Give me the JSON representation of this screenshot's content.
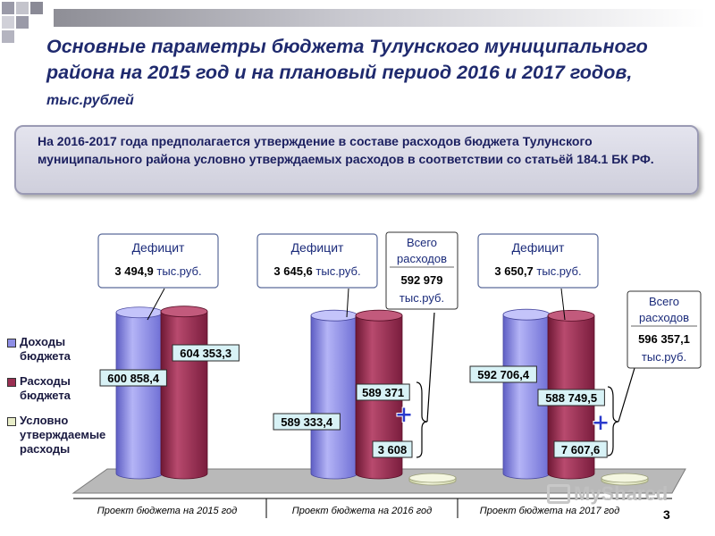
{
  "title": {
    "main": "Основные параметры бюджета Тулунского муниципального района на 2015 год и на плановый период 2016 и 2017 годов,",
    "unit": "тыс.рублей"
  },
  "note": "На 2016-2017 года предполагается утверждение в составе расходов бюджета Тулунского муниципального района условно утверждаемых расходов в соответствии со статьёй 184.1 БК РФ.",
  "legend": [
    {
      "label": "Доходы бюджета",
      "color": "#8f8fe6"
    },
    {
      "label": "Расходы бюджета",
      "color": "#9a2f52"
    },
    {
      "label": "Условно утверждаемые расходы",
      "color": "#e8edc8"
    }
  ],
  "chart_data": {
    "type": "bar",
    "categories": [
      "Проект бюджета на 2015 год",
      "Проект бюджета на 2016 год",
      "Проект бюджета на 2017 год"
    ],
    "series": [
      {
        "name": "Доходы бюджета",
        "values": [
          600858.4,
          589333.4,
          592706.4
        ],
        "labels": [
          "600 858,4",
          "589 333,4",
          "592 706,4"
        ]
      },
      {
        "name": "Расходы бюджета",
        "values": [
          604353.3,
          589371,
          588749.5
        ],
        "labels": [
          "604 353,3",
          "589 371",
          "588 749,5"
        ]
      },
      {
        "name": "Условно утверждаемые расходы",
        "values": [
          0,
          3608,
          7607.6
        ],
        "labels": [
          "",
          "3 608",
          "7 607,6"
        ]
      }
    ],
    "deficit": [
      {
        "title": "Дефицит",
        "value": "3 494,9",
        "unit": "тыс.руб."
      },
      {
        "title": "Дефицит",
        "value": "3 645,6",
        "unit": "тыс.руб."
      },
      {
        "title": "Дефицит",
        "value": "3 650,7",
        "unit": "тыс.руб."
      }
    ],
    "total_expenses": [
      null,
      {
        "title": "Всего расходов",
        "value": "592 979",
        "unit": "тыс.руб."
      },
      {
        "title": "Всего расходов",
        "value": "596 357,1",
        "unit": "тыс.руб."
      }
    ],
    "plus_sign": "+"
  },
  "slide_number": "3",
  "watermark": "MyShared"
}
